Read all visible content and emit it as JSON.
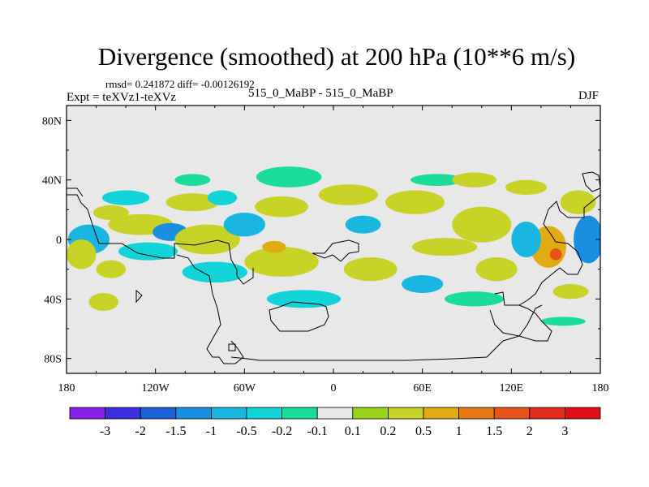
{
  "chart_data": {
    "type": "contour-map",
    "title": "Divergence (smoothed) at 200 hPa (10**6 m/s)",
    "stats_line": "rmsd= 0.241872  diff= -0.00126192",
    "experiment_label": "Expt = teXVz1-teXVz",
    "runs_label": "515_0_MaBP - 515_0_MaBP",
    "season": "DJF",
    "x_axis": {
      "range": [
        -180,
        180
      ],
      "ticks": [
        -180,
        -120,
        -60,
        0,
        60,
        120,
        180
      ],
      "tick_labels": [
        "180",
        "120W",
        "60W",
        "0",
        "60E",
        "120E",
        "180"
      ]
    },
    "y_axis": {
      "range": [
        -90,
        90
      ],
      "ticks": [
        80,
        40,
        0,
        -40,
        -80
      ],
      "tick_labels": [
        "80N",
        "40N",
        "0",
        "40S",
        "80S"
      ]
    },
    "colorbar": {
      "labels": [
        "-3",
        "-2",
        "-1.5",
        "-1",
        "-0.5",
        "-0.2",
        "-0.1",
        "0.1",
        "0.2",
        "0.5",
        "1",
        "1.5",
        "2",
        "3"
      ],
      "colors": [
        "#8a1fe6",
        "#3a2ee0",
        "#1b5fd9",
        "#1a8fdf",
        "#19b6e0",
        "#12d3d8",
        "#1bdc9a",
        "#e8e8e8",
        "#9ad51a",
        "#c9d227",
        "#e0ac12",
        "#e77a16",
        "#e8531a",
        "#e12d19",
        "#e0101a"
      ]
    },
    "field": {
      "units": "10**6 m/s",
      "background_color": "#e8e8e8",
      "blobs": [
        {
          "lon": -130,
          "lat": 10,
          "rlon": 22,
          "rlat": 7,
          "level": 9
        },
        {
          "lon": -150,
          "lat": 18,
          "rlon": 12,
          "rlat": 5,
          "level": 9
        },
        {
          "lon": -165,
          "lat": 0,
          "rlon": 14,
          "rlat": 10,
          "level": 4
        },
        {
          "lon": -170,
          "lat": -10,
          "rlon": 10,
          "rlat": 10,
          "level": 9
        },
        {
          "lon": -150,
          "lat": -20,
          "rlon": 10,
          "rlat": 6,
          "level": 9
        },
        {
          "lon": -140,
          "lat": 28,
          "rlon": 16,
          "rlat": 5,
          "level": 5
        },
        {
          "lon": -125,
          "lat": -8,
          "rlon": 20,
          "rlat": 6,
          "level": 5
        },
        {
          "lon": -110,
          "lat": 5,
          "rlon": 12,
          "rlat": 6,
          "level": 3
        },
        {
          "lon": -95,
          "lat": 40,
          "rlon": 12,
          "rlat": 4,
          "level": 6
        },
        {
          "lon": -95,
          "lat": 25,
          "rlon": 18,
          "rlat": 6,
          "level": 9
        },
        {
          "lon": -85,
          "lat": 0,
          "rlon": 22,
          "rlat": 10,
          "level": 9
        },
        {
          "lon": -75,
          "lat": 28,
          "rlon": 10,
          "rlat": 5,
          "level": 5
        },
        {
          "lon": -80,
          "lat": -22,
          "rlon": 22,
          "rlat": 7,
          "level": 5
        },
        {
          "lon": -60,
          "lat": 10,
          "rlon": 14,
          "rlat": 8,
          "level": 4
        },
        {
          "lon": -30,
          "lat": 42,
          "rlon": 22,
          "rlat": 7,
          "level": 6
        },
        {
          "lon": -35,
          "lat": 22,
          "rlon": 18,
          "rlat": 7,
          "level": 9
        },
        {
          "lon": -35,
          "lat": -15,
          "rlon": 25,
          "rlat": 10,
          "level": 9
        },
        {
          "lon": -40,
          "lat": -5,
          "rlon": 8,
          "rlat": 4,
          "level": 10
        },
        {
          "lon": -20,
          "lat": -40,
          "rlon": 25,
          "rlat": 6,
          "level": 5
        },
        {
          "lon": 10,
          "lat": 30,
          "rlon": 20,
          "rlat": 7,
          "level": 9
        },
        {
          "lon": 20,
          "lat": 10,
          "rlon": 12,
          "rlat": 6,
          "level": 4
        },
        {
          "lon": 25,
          "lat": -20,
          "rlon": 18,
          "rlat": 8,
          "level": 9
        },
        {
          "lon": 55,
          "lat": 25,
          "rlon": 20,
          "rlat": 8,
          "level": 9
        },
        {
          "lon": 70,
          "lat": 40,
          "rlon": 18,
          "rlat": 4,
          "level": 6
        },
        {
          "lon": 75,
          "lat": -5,
          "rlon": 22,
          "rlat": 6,
          "level": 9
        },
        {
          "lon": 60,
          "lat": -30,
          "rlon": 14,
          "rlat": 6,
          "level": 4
        },
        {
          "lon": 95,
          "lat": 40,
          "rlon": 15,
          "rlat": 5,
          "level": 9
        },
        {
          "lon": 100,
          "lat": 10,
          "rlon": 20,
          "rlat": 12,
          "level": 9
        },
        {
          "lon": 110,
          "lat": -20,
          "rlon": 14,
          "rlat": 8,
          "level": 9
        },
        {
          "lon": 95,
          "lat": -40,
          "rlon": 20,
          "rlat": 5,
          "level": 6
        },
        {
          "lon": 130,
          "lat": 35,
          "rlon": 14,
          "rlat": 5,
          "level": 9
        },
        {
          "lon": 145,
          "lat": -5,
          "rlon": 12,
          "rlat": 14,
          "level": 10
        },
        {
          "lon": 150,
          "lat": -10,
          "rlon": 4,
          "rlat": 4,
          "level": 12
        },
        {
          "lon": 130,
          "lat": 0,
          "rlon": 10,
          "rlat": 12,
          "level": 4
        },
        {
          "lon": 172,
          "lat": 0,
          "rlon": 10,
          "rlat": 16,
          "level": 3
        },
        {
          "lon": 165,
          "lat": 25,
          "rlon": 12,
          "rlat": 8,
          "level": 9
        },
        {
          "lon": 155,
          "lat": -55,
          "rlon": 15,
          "rlat": 3,
          "level": 6
        },
        {
          "lon": -155,
          "lat": -42,
          "rlon": 10,
          "rlat": 6,
          "level": 9
        },
        {
          "lon": 160,
          "lat": -35,
          "rlon": 12,
          "rlat": 5,
          "level": 9
        }
      ]
    }
  }
}
